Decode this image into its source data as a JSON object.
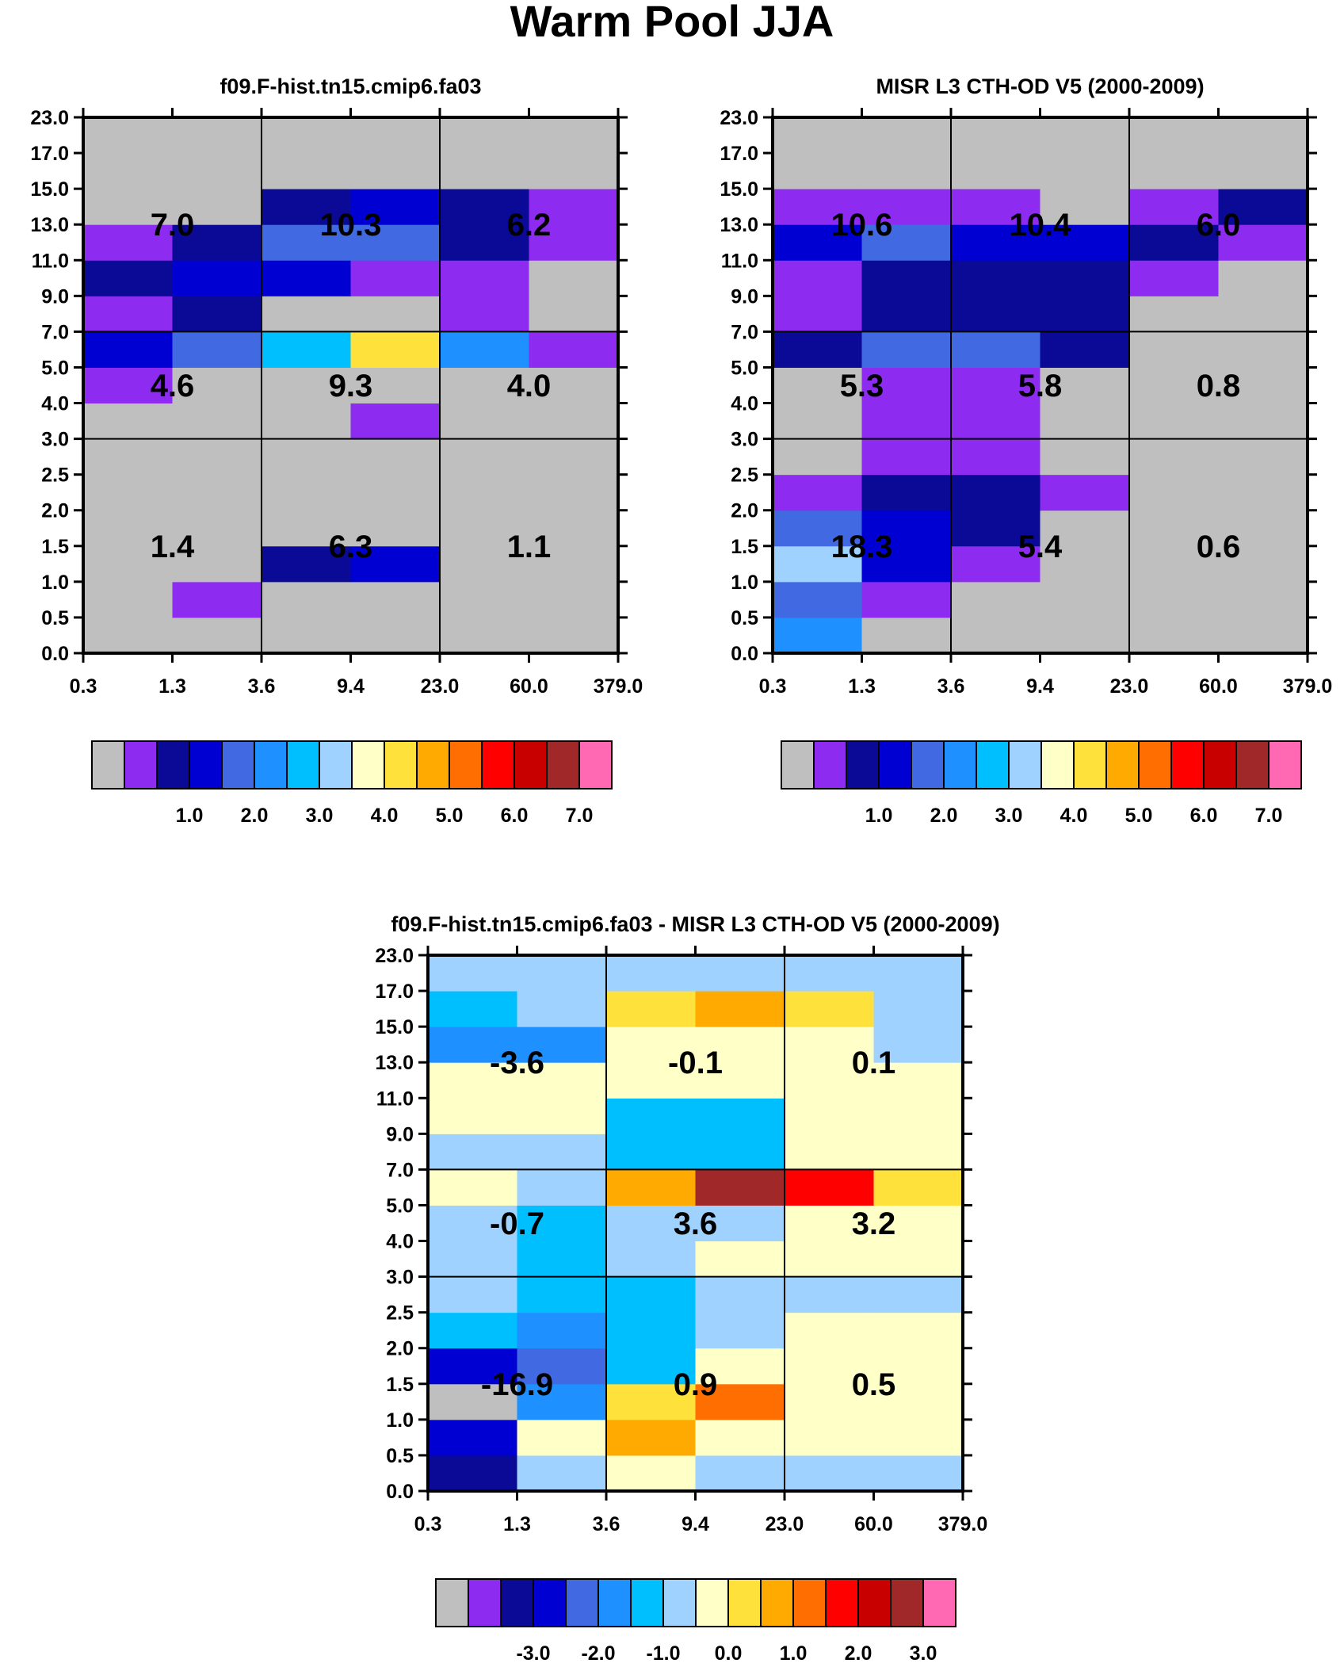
{
  "title": "Warm Pool JJA",
  "colors": {
    "seq": [
      "#bfbfbf",
      "#8d2cf0",
      "#0a0a96",
      "#0000d2",
      "#4169e1",
      "#1e90ff",
      "#00bfff",
      "#a0d2ff",
      "#ffffc8",
      "#ffe13c",
      "#ffaa00",
      "#ff6e00",
      "#ff0000",
      "#c80000",
      "#a02828",
      "#ff69b4"
    ],
    "diff": [
      "#bfbfbf",
      "#8d2cf0",
      "#0a0a96",
      "#0000d2",
      "#4169e1",
      "#1e90ff",
      "#00bfff",
      "#a0d2ff",
      "#ffffc8",
      "#ffe13c",
      "#ffaa00",
      "#ff6e00",
      "#ff0000",
      "#c80000",
      "#a02828",
      "#ff69b4"
    ]
  },
  "chart_data": [
    {
      "type": "heatmap",
      "title": "f09.F-hist.tn15.cmip6.fa03",
      "xlabel": "",
      "ylabel": "",
      "x_ticks": [
        "0.3",
        "1.3",
        "3.6",
        "9.4",
        "23.0",
        "60.0",
        "379.0"
      ],
      "y_ticks": [
        "0.0",
        "0.5",
        "1.0",
        "1.5",
        "2.0",
        "2.5",
        "3.0",
        "4.0",
        "5.0",
        "7.0",
        "9.0",
        "11.0",
        "13.0",
        "15.0",
        "17.0",
        "23.0"
      ],
      "cells": [
        [
          0,
          0,
          0,
          0,
          0,
          0
        ],
        [
          0,
          1,
          0,
          0,
          0,
          0
        ],
        [
          0,
          0,
          2,
          3,
          0,
          0
        ],
        [
          0,
          0,
          0,
          0,
          0,
          0
        ],
        [
          0,
          0,
          0,
          0,
          0,
          0
        ],
        [
          0,
          0,
          0,
          0,
          0,
          0
        ],
        [
          0,
          0,
          0,
          1,
          0,
          0
        ],
        [
          1,
          0,
          0,
          0,
          0,
          0
        ],
        [
          3,
          4,
          6,
          9,
          5,
          1
        ],
        [
          1,
          2,
          0,
          0,
          1,
          0
        ],
        [
          2,
          3,
          3,
          1,
          1,
          0
        ],
        [
          1,
          2,
          4,
          4,
          2,
          1
        ],
        [
          0,
          0,
          2,
          3,
          2,
          1
        ],
        [
          0,
          0,
          0,
          0,
          0,
          0
        ],
        [
          0,
          0,
          0,
          0,
          0,
          0
        ]
      ],
      "box_labels": [
        {
          "text": "7.0",
          "col": 0,
          "row": 12
        },
        {
          "text": "10.3",
          "col": 1,
          "row": 12
        },
        {
          "text": "6.2",
          "col": 2,
          "row": 12
        },
        {
          "text": "4.6",
          "col": 0,
          "row": 7.5
        },
        {
          "text": "9.3",
          "col": 1,
          "row": 7.5
        },
        {
          "text": "4.0",
          "col": 2,
          "row": 7.5
        },
        {
          "text": "1.4",
          "col": 0,
          "row": 3
        },
        {
          "text": "6.3",
          "col": 1,
          "row": 3
        },
        {
          "text": "1.1",
          "col": 2,
          "row": 3
        }
      ],
      "colorbar": {
        "palette": "seq",
        "labels": [
          "1.0",
          "2.0",
          "3.0",
          "4.0",
          "5.0",
          "6.0",
          "7.0"
        ]
      }
    },
    {
      "type": "heatmap",
      "title": "MISR L3 CTH-OD V5 (2000-2009)",
      "xlabel": "",
      "ylabel": "",
      "x_ticks": [
        "0.3",
        "1.3",
        "3.6",
        "9.4",
        "23.0",
        "60.0",
        "379.0"
      ],
      "y_ticks": [
        "0.0",
        "0.5",
        "1.0",
        "1.5",
        "2.0",
        "2.5",
        "3.0",
        "4.0",
        "5.0",
        "7.0",
        "9.0",
        "11.0",
        "13.0",
        "15.0",
        "17.0",
        "23.0"
      ],
      "cells": [
        [
          5,
          0,
          0,
          0,
          0,
          0
        ],
        [
          4,
          1,
          0,
          0,
          0,
          0
        ],
        [
          7,
          3,
          1,
          0,
          0,
          0
        ],
        [
          4,
          3,
          2,
          0,
          0,
          0
        ],
        [
          1,
          2,
          2,
          1,
          0,
          0
        ],
        [
          0,
          1,
          1,
          0,
          0,
          0
        ],
        [
          0,
          1,
          1,
          0,
          0,
          0
        ],
        [
          0,
          1,
          1,
          0,
          0,
          0
        ],
        [
          2,
          4,
          4,
          2,
          0,
          0
        ],
        [
          1,
          2,
          2,
          2,
          0,
          0
        ],
        [
          1,
          2,
          2,
          2,
          1,
          0
        ],
        [
          3,
          4,
          3,
          3,
          2,
          1
        ],
        [
          1,
          1,
          1,
          0,
          1,
          2
        ],
        [
          0,
          0,
          0,
          0,
          0,
          0
        ],
        [
          0,
          0,
          0,
          0,
          0,
          0
        ]
      ],
      "box_labels": [
        {
          "text": "10.6",
          "col": 0,
          "row": 12
        },
        {
          "text": "10.4",
          "col": 1,
          "row": 12
        },
        {
          "text": "6.0",
          "col": 2,
          "row": 12
        },
        {
          "text": "5.3",
          "col": 0,
          "row": 7.5
        },
        {
          "text": "5.8",
          "col": 1,
          "row": 7.5
        },
        {
          "text": "0.8",
          "col": 2,
          "row": 7.5
        },
        {
          "text": "18.3",
          "col": 0,
          "row": 3
        },
        {
          "text": "5.4",
          "col": 1,
          "row": 3
        },
        {
          "text": "0.6",
          "col": 2,
          "row": 3
        }
      ],
      "colorbar": {
        "palette": "seq",
        "labels": [
          "1.0",
          "2.0",
          "3.0",
          "4.0",
          "5.0",
          "6.0",
          "7.0"
        ]
      }
    },
    {
      "type": "heatmap",
      "title": "f09.F-hist.tn15.cmip6.fa03 - MISR L3 CTH-OD V5 (2000-2009)",
      "xlabel": "",
      "ylabel": "",
      "x_ticks": [
        "0.3",
        "1.3",
        "3.6",
        "9.4",
        "23.0",
        "60.0",
        "379.0"
      ],
      "y_ticks": [
        "0.0",
        "0.5",
        "1.0",
        "1.5",
        "2.0",
        "2.5",
        "3.0",
        "4.0",
        "5.0",
        "7.0",
        "9.0",
        "11.0",
        "13.0",
        "15.0",
        "17.0",
        "23.0"
      ],
      "cells": [
        [
          2,
          7,
          8,
          7,
          7,
          7
        ],
        [
          3,
          8,
          10,
          8,
          8,
          8
        ],
        [
          0,
          5,
          9,
          11,
          8,
          8
        ],
        [
          3,
          4,
          6,
          8,
          8,
          8
        ],
        [
          6,
          5,
          6,
          7,
          8,
          8
        ],
        [
          7,
          6,
          6,
          7,
          7,
          7
        ],
        [
          7,
          6,
          7,
          8,
          8,
          8
        ],
        [
          7,
          6,
          7,
          7,
          8,
          8
        ],
        [
          8,
          7,
          10,
          14,
          12,
          9
        ],
        [
          7,
          7,
          6,
          6,
          8,
          8
        ],
        [
          8,
          8,
          6,
          6,
          8,
          8
        ],
        [
          8,
          8,
          8,
          8,
          8,
          8
        ],
        [
          5,
          5,
          8,
          8,
          8,
          7
        ],
        [
          6,
          7,
          9,
          10,
          9,
          7
        ],
        [
          7,
          7,
          7,
          7,
          7,
          7
        ]
      ],
      "box_labels": [
        {
          "text": "-3.6",
          "col": 0,
          "row": 12
        },
        {
          "text": "-0.1",
          "col": 1,
          "row": 12
        },
        {
          "text": "0.1",
          "col": 2,
          "row": 12
        },
        {
          "text": "-0.7",
          "col": 0,
          "row": 7.5
        },
        {
          "text": "3.6",
          "col": 1,
          "row": 7.5
        },
        {
          "text": "3.2",
          "col": 2,
          "row": 7.5
        },
        {
          "text": "-16.9",
          "col": 0,
          "row": 3
        },
        {
          "text": "0.9",
          "col": 1,
          "row": 3
        },
        {
          "text": "0.5",
          "col": 2,
          "row": 3
        }
      ],
      "colorbar": {
        "palette": "diff",
        "labels": [
          "-3.0",
          "-2.0",
          "-1.0",
          "0.0",
          "1.0",
          "2.0",
          "3.0"
        ]
      }
    }
  ]
}
